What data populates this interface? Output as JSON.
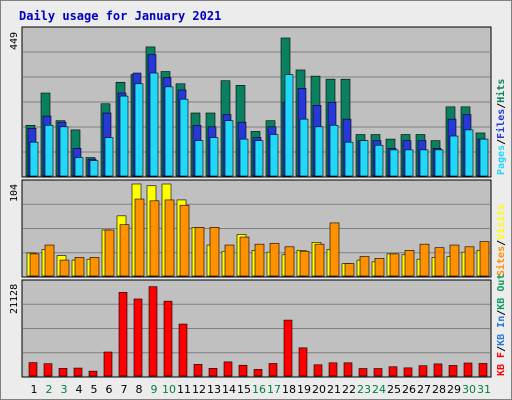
{
  "title": "Daily usage for January 2021",
  "colors": {
    "frame_bg": "#ececec",
    "panel_bg": "#c0c0c0",
    "grid": "#808080",
    "title": "#0000c0",
    "hits": "#0b8060",
    "files": "#2838d8",
    "pages": "#20d8f8",
    "visits": "#ffff00",
    "sites": "#ff9000",
    "kb_f": "#ff0000",
    "kb_in": "#2878d8",
    "kb_out": "#08a060",
    "weekend_label": "#008040",
    "weekday_label": "#000000"
  },
  "chart_data": [
    {
      "type": "bar",
      "panel": "hits-files-pages",
      "ymax_label": "449",
      "ylim": [
        0,
        449
      ],
      "legend": {
        "pages": "Pages",
        "files": "Files",
        "hits": "Hits",
        "sep": "/"
      },
      "categories": [
        "1",
        "2",
        "3",
        "4",
        "5",
        "6",
        "7",
        "8",
        "9",
        "10",
        "11",
        "12",
        "13",
        "14",
        "15",
        "16",
        "17",
        "18",
        "19",
        "20",
        "21",
        "22",
        "23",
        "24",
        "25",
        "26",
        "27",
        "28",
        "29",
        "30",
        "31"
      ],
      "series": [
        {
          "name": "Hits",
          "values": [
            165,
            270,
            180,
            150,
            60,
            235,
            305,
            330,
            420,
            340,
            300,
            205,
            205,
            310,
            295,
            145,
            180,
            449,
            345,
            325,
            315,
            315,
            135,
            135,
            120,
            135,
            135,
            115,
            225,
            225,
            140
          ]
        },
        {
          "name": "Files",
          "values": [
            155,
            195,
            175,
            90,
            55,
            205,
            270,
            335,
            395,
            320,
            280,
            165,
            160,
            200,
            175,
            125,
            160,
            240,
            285,
            230,
            240,
            185,
            115,
            115,
            90,
            115,
            115,
            90,
            185,
            200,
            120
          ]
        },
        {
          "name": "Pages",
          "values": [
            110,
            165,
            160,
            60,
            50,
            125,
            260,
            300,
            335,
            290,
            250,
            115,
            125,
            180,
            120,
            115,
            135,
            330,
            185,
            160,
            165,
            110,
            115,
            100,
            85,
            85,
            85,
            85,
            130,
            150,
            120
          ]
        }
      ]
    },
    {
      "type": "bar",
      "panel": "visits-sites",
      "ymax_label": "104",
      "ylim": [
        0,
        104
      ],
      "legend": {
        "sites": "Sites",
        "visits": "Visits",
        "sep": "/"
      },
      "categories": [
        "1",
        "2",
        "3",
        "4",
        "5",
        "6",
        "7",
        "8",
        "9",
        "10",
        "11",
        "12",
        "13",
        "14",
        "15",
        "16",
        "17",
        "18",
        "19",
        "20",
        "21",
        "22",
        "23",
        "24",
        "25",
        "26",
        "27",
        "28",
        "29",
        "30",
        "31"
      ],
      "series": [
        {
          "name": "Visits",
          "values": [
            26,
            30,
            23,
            18,
            19,
            52,
            68,
            104,
            102,
            104,
            86,
            55,
            35,
            28,
            47,
            29,
            27,
            24,
            29,
            38,
            30,
            14,
            18,
            16,
            25,
            24,
            19,
            21,
            22,
            27,
            29
          ]
        },
        {
          "name": "Sites",
          "values": [
            25,
            35,
            18,
            21,
            21,
            52,
            58,
            87,
            85,
            86,
            80,
            55,
            55,
            35,
            44,
            36,
            37,
            33,
            28,
            36,
            60,
            14,
            22,
            20,
            25,
            29,
            36,
            32,
            35,
            33,
            39
          ]
        }
      ]
    },
    {
      "type": "bar",
      "panel": "kbytes",
      "ymax_label": "21128",
      "ylim": [
        0,
        21128
      ],
      "legend": {
        "kb_f": "KB F",
        "kb_in": "KB In",
        "kb_out": "KB Out",
        "sep": "/"
      },
      "categories": [
        "1",
        "2",
        "3",
        "4",
        "5",
        "6",
        "7",
        "8",
        "9",
        "10",
        "11",
        "12",
        "13",
        "14",
        "15",
        "16",
        "17",
        "18",
        "19",
        "20",
        "21",
        "22",
        "23",
        "24",
        "25",
        "26",
        "27",
        "28",
        "29",
        "30",
        "31"
      ],
      "series": [
        {
          "name": "KB F",
          "values": [
            3050,
            2800,
            1730,
            1800,
            1100,
            5450,
            19000,
            17500,
            20300,
            17000,
            11800,
            2650,
            1750,
            3200,
            2450,
            1500,
            2850,
            12700,
            6400,
            2550,
            3000,
            3000,
            1700,
            1700,
            2100,
            1850,
            2350,
            2750,
            2400,
            2950,
            2850
          ]
        }
      ]
    }
  ],
  "x_axis": {
    "labels": [
      "1",
      "2",
      "3",
      "4",
      "5",
      "6",
      "7",
      "8",
      "9",
      "10",
      "11",
      "12",
      "13",
      "14",
      "15",
      "16",
      "17",
      "18",
      "19",
      "20",
      "21",
      "22",
      "23",
      "24",
      "25",
      "26",
      "27",
      "28",
      "29",
      "30",
      "31"
    ],
    "weekend_days": [
      2,
      3,
      9,
      10,
      16,
      17,
      23,
      24,
      30,
      31
    ]
  }
}
